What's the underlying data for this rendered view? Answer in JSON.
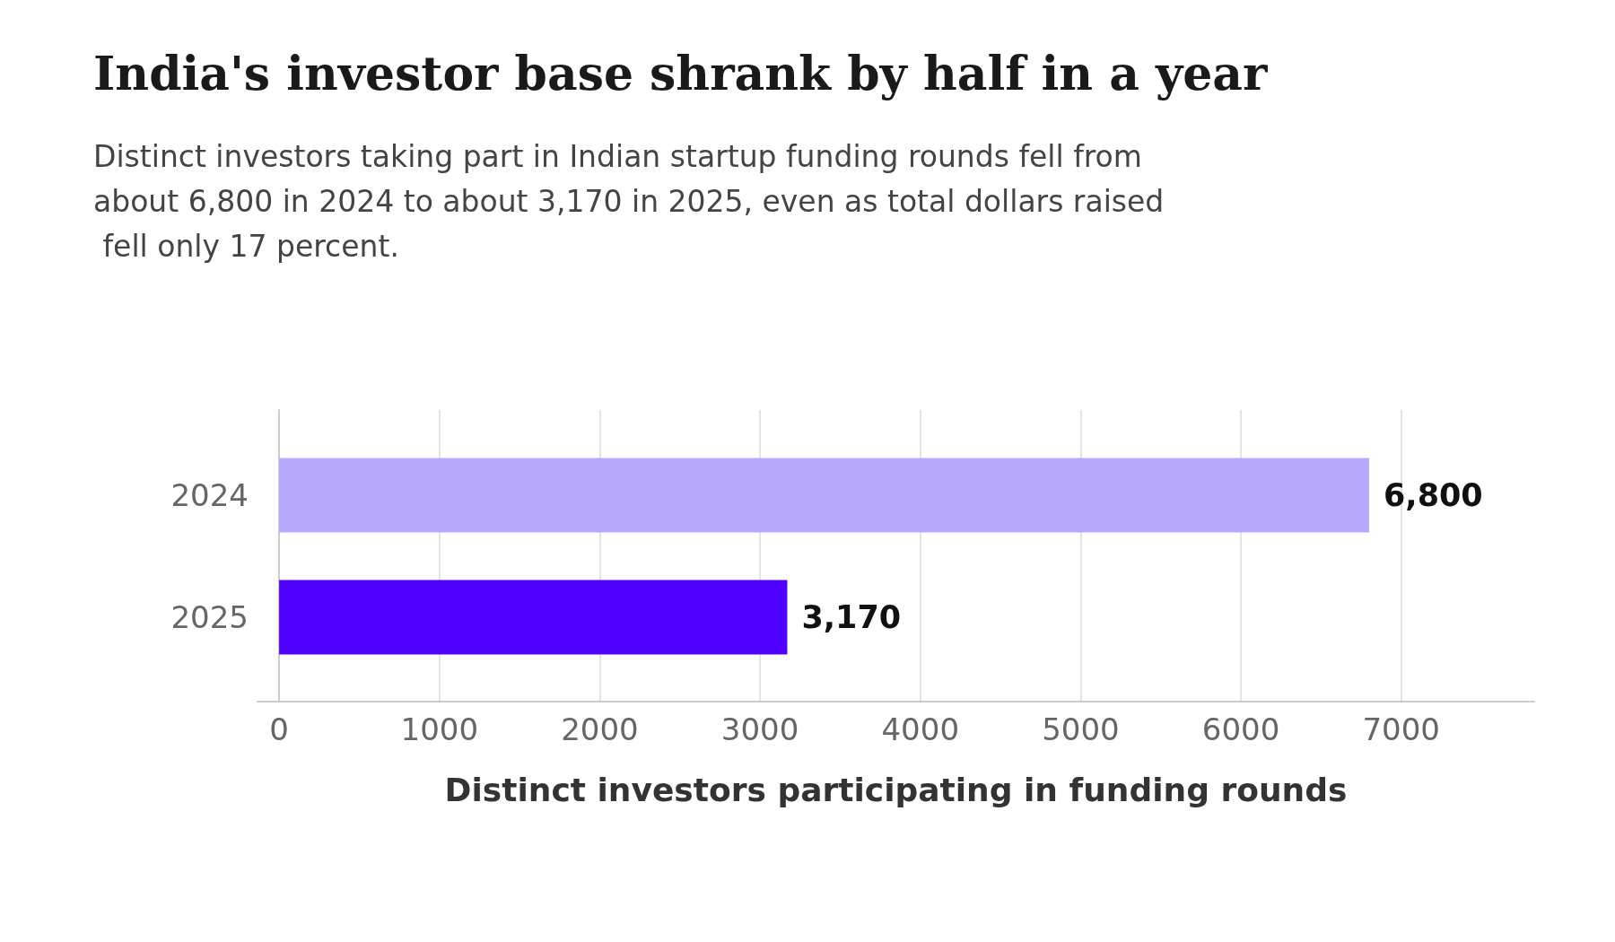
{
  "chart_data": {
    "type": "bar",
    "orientation": "horizontal",
    "title": "India's investor base shrank by half in a year",
    "subtitle": "Distinct investors taking part in Indian startup funding rounds fell from about 6,800 in 2024 to about 3,170 in 2025, even as total dollars raised fell only 17 percent.",
    "xlabel": "Distinct investors participating in funding rounds",
    "categories": [
      "2024",
      "2025"
    ],
    "values": [
      6800,
      3170
    ],
    "colors": [
      "#b8a9ff",
      "#5000ff"
    ],
    "value_labels": [
      "6,800",
      "3,170"
    ],
    "xlim": [
      -135,
      7830
    ],
    "xticks": [
      0,
      1000,
      2000,
      3000,
      4000,
      5000,
      6000,
      7000
    ],
    "grid": "x"
  }
}
